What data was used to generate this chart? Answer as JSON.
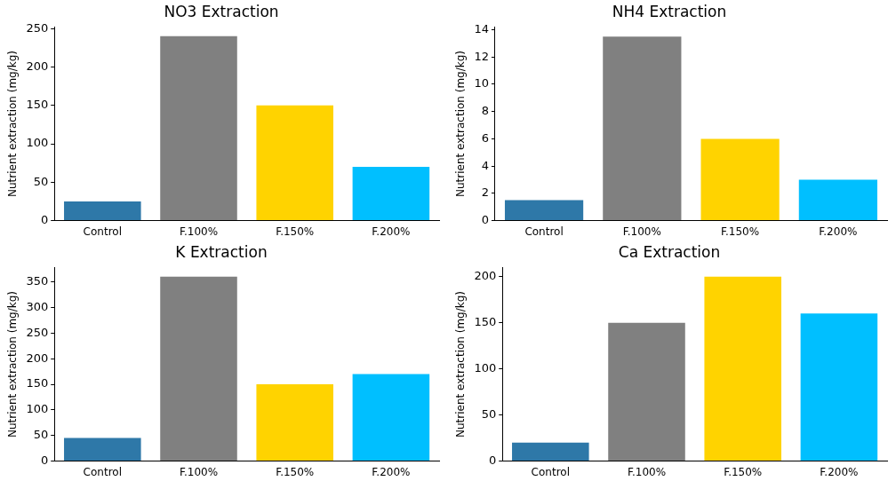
{
  "chart_data": [
    {
      "type": "bar",
      "title": "NO3 Extraction",
      "ylabel": "Nutrient extraction (mg/kg)",
      "categories": [
        "Control",
        "F.100%",
        "F.150%",
        "F.200%"
      ],
      "values": [
        25,
        240,
        150,
        70
      ],
      "colors": [
        "#2e78a8",
        "#808080",
        "#ffd300",
        "#00bfff"
      ],
      "ylim": [
        0,
        252
      ],
      "yticks": [
        0,
        50,
        100,
        150,
        200,
        250
      ],
      "grid": false,
      "legend": false
    },
    {
      "type": "bar",
      "title": "NH4 Extraction",
      "ylabel": "Nutrient extraction (mg/kg)",
      "categories": [
        "Control",
        "F.100%",
        "F.150%",
        "F.200%"
      ],
      "values": [
        1.5,
        13.5,
        6,
        3
      ],
      "colors": [
        "#2e78a8",
        "#808080",
        "#ffd300",
        "#00bfff"
      ],
      "ylim": [
        0,
        14.2
      ],
      "yticks": [
        0,
        2,
        4,
        6,
        8,
        10,
        12,
        14
      ],
      "grid": false,
      "legend": false
    },
    {
      "type": "bar",
      "title": "K Extraction",
      "ylabel": "Nutrient extraction (mg/kg)",
      "categories": [
        "Control",
        "F.100%",
        "F.150%",
        "F.200%"
      ],
      "values": [
        45,
        360,
        150,
        170
      ],
      "colors": [
        "#2e78a8",
        "#808080",
        "#ffd300",
        "#00bfff"
      ],
      "ylim": [
        0,
        378
      ],
      "yticks": [
        0,
        50,
        100,
        150,
        200,
        250,
        300,
        350
      ],
      "grid": false,
      "legend": false
    },
    {
      "type": "bar",
      "title": "Ca Extraction",
      "ylabel": "Nutrient extraction (mg/kg)",
      "categories": [
        "Control",
        "F.100%",
        "F.150%",
        "F.200%"
      ],
      "values": [
        20,
        150,
        200,
        160
      ],
      "colors": [
        "#2e78a8",
        "#808080",
        "#ffd300",
        "#00bfff"
      ],
      "ylim": [
        0,
        210
      ],
      "yticks": [
        0,
        50,
        100,
        150,
        200
      ],
      "grid": false,
      "legend": false
    }
  ]
}
